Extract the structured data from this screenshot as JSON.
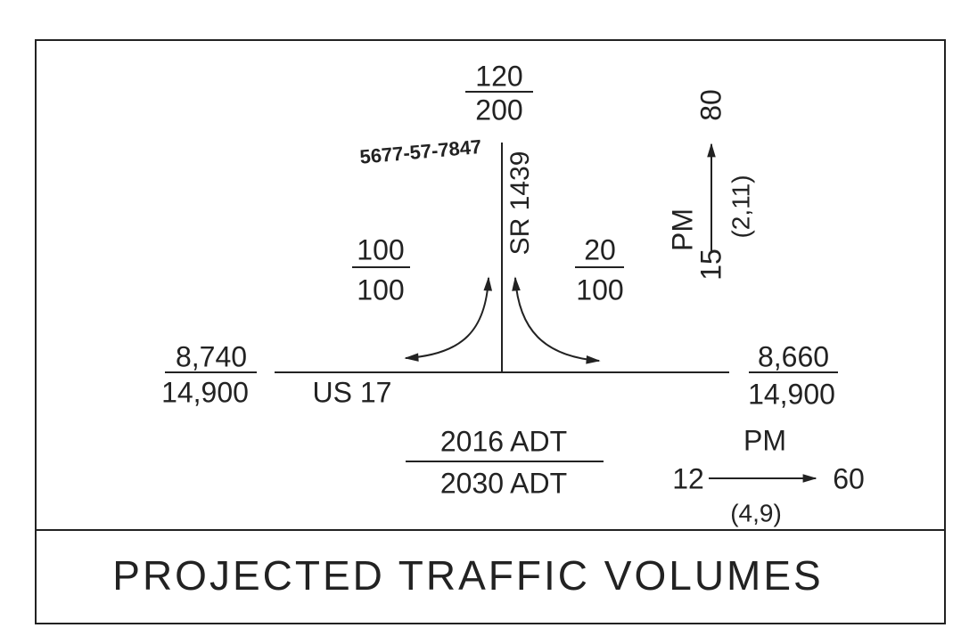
{
  "title": "PROJECTED TRAFFIC VOLUMES",
  "annotation": "5677-57-7847",
  "roads": {
    "minor": "SR 1439",
    "major": "US 17"
  },
  "north_approach": {
    "top": "120",
    "bottom": "200"
  },
  "left_turn": {
    "top": "100",
    "bottom": "100"
  },
  "right_turn": {
    "top": "20",
    "bottom": "100"
  },
  "west_approach": {
    "top": "8,740",
    "bottom": "14,900"
  },
  "east_approach": {
    "top": "8,660",
    "bottom": "14,900"
  },
  "legend": {
    "top": "2016 ADT",
    "bottom": "2030 ADT"
  },
  "pm_vertical": {
    "label": "PM",
    "from": "15",
    "to": "80",
    "ratio": "(2,11)"
  },
  "pm_horizontal": {
    "label": "PM",
    "from": "12",
    "to": "60",
    "ratio": "(4,9)"
  }
}
